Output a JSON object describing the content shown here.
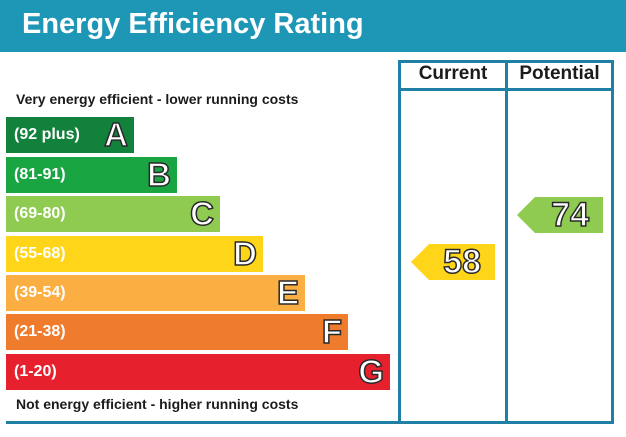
{
  "title": "Energy Efficiency Rating",
  "columns": {
    "current": "Current",
    "potential": "Potential"
  },
  "top_caption": "Very energy efficient - lower running costs",
  "bottom_caption": "Not energy efficient - higher running costs",
  "bands": [
    {
      "range": "(92 plus)",
      "letter": "A",
      "color": "#12813c"
    },
    {
      "range": "(81-91)",
      "letter": "B",
      "color": "#1aa543"
    },
    {
      "range": "(69-80)",
      "letter": "C",
      "color": "#8fca51"
    },
    {
      "range": "(55-68)",
      "letter": "D",
      "color": "#ffd519"
    },
    {
      "range": "(39-54)",
      "letter": "E",
      "color": "#fbae41"
    },
    {
      "range": "(21-38)",
      "letter": "F",
      "color": "#ef7b2c"
    },
    {
      "range": "(1-20)",
      "letter": "G",
      "color": "#e6202d"
    }
  ],
  "ratings": {
    "current": {
      "value": "58",
      "band": "D",
      "color": "#ffd519"
    },
    "potential": {
      "value": "74",
      "band": "C",
      "color": "#8fca51"
    }
  }
}
